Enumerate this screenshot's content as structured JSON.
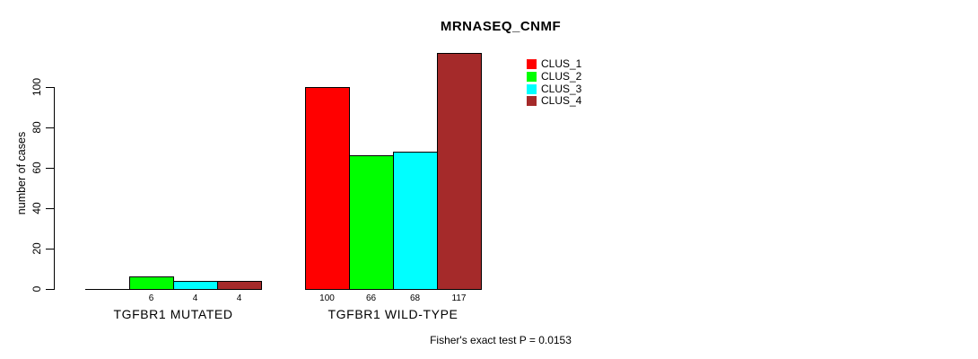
{
  "page": {
    "background_color": "#ffffff",
    "text_color": "#000000"
  },
  "chart_data": {
    "type": "bar",
    "title": "MRNASEQ_CNMF",
    "ylabel": "number of cases",
    "xlabel": "",
    "ylim": [
      0,
      120
    ],
    "yticks": [
      0,
      20,
      40,
      60,
      80,
      100
    ],
    "grid": false,
    "legend_position": "top-right",
    "categories": [
      "TGFBR1 MUTATED",
      "TGFBR1 WILD-TYPE"
    ],
    "series": [
      {
        "name": "CLUS_1",
        "color": "#ff0000",
        "values": [
          0,
          100
        ]
      },
      {
        "name": "CLUS_2",
        "color": "#00ff00",
        "values": [
          6,
          66
        ]
      },
      {
        "name": "CLUS_3",
        "color": "#00ffff",
        "values": [
          4,
          68
        ]
      },
      {
        "name": "CLUS_4",
        "color": "#a52a2a",
        "values": [
          4,
          117
        ]
      }
    ],
    "bar_value_labels": [
      [
        "",
        "6",
        "4",
        "4"
      ],
      [
        "100",
        "66",
        "68",
        "117"
      ]
    ],
    "annotation": "Fisher's exact test P = 0.0153"
  }
}
